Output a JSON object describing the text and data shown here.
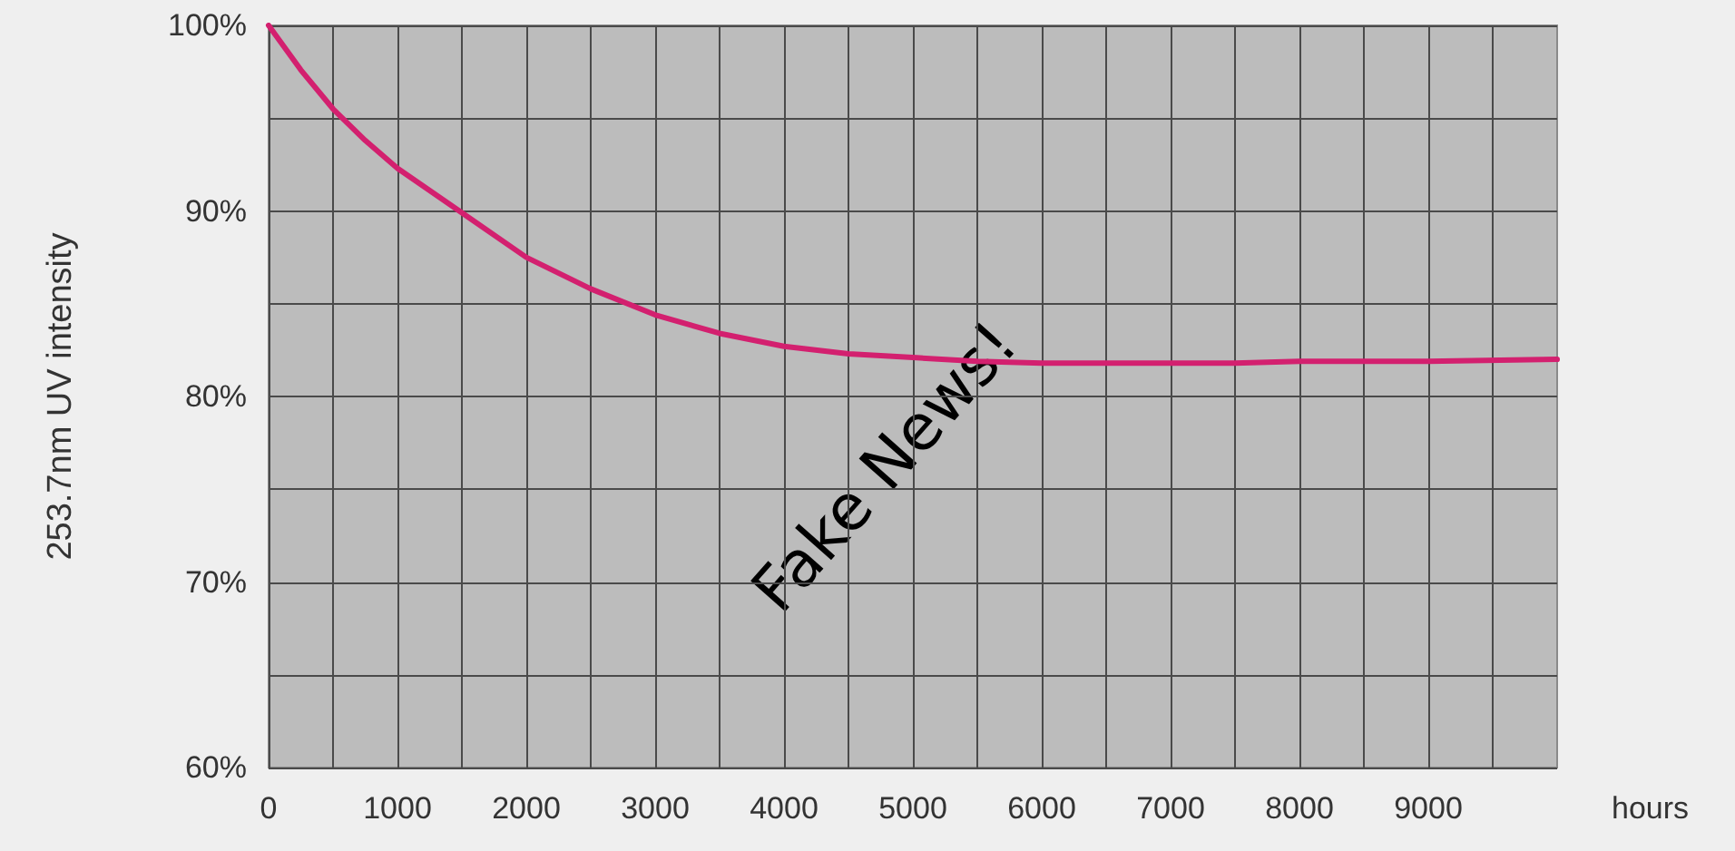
{
  "chart_data": {
    "type": "line",
    "xlabel": "hours",
    "ylabel": "253.7nm UV intensity",
    "x": [
      0,
      250,
      500,
      750,
      1000,
      1500,
      2000,
      2500,
      3000,
      3500,
      4000,
      4500,
      5000,
      5500,
      6000,
      7000,
      7500,
      8000,
      9000,
      10000
    ],
    "series": [
      {
        "color": "#d3206f",
        "values": [
          100,
          97.6,
          95.5,
          93.8,
          92.3,
          89.9,
          87.5,
          85.8,
          84.4,
          83.4,
          82.7,
          82.3,
          82.1,
          81.9,
          81.8,
          81.8,
          81.8,
          81.9,
          81.9,
          82.0
        ]
      }
    ],
    "xlim": [
      0,
      10000
    ],
    "xticks": [
      0,
      {
        "value": 500,
        "label": null
      },
      1000,
      {
        "value": 1500,
        "label": null
      },
      2000,
      {
        "value": 2500,
        "label": null
      },
      3000,
      {
        "value": 3500,
        "label": null
      },
      4000,
      {
        "value": 4500,
        "label": null
      },
      5000,
      {
        "value": 5500,
        "label": null
      },
      6000,
      {
        "value": 6500,
        "label": null
      },
      7000,
      {
        "value": 7500,
        "label": null
      },
      8000,
      {
        "value": 8500,
        "label": null
      },
      9000,
      {
        "value": 9500,
        "label": null
      }
    ],
    "ylim": [
      60,
      100
    ],
    "yticks": [
      {
        "value": 60,
        "label": "60%"
      },
      {
        "value": 65,
        "label": null
      },
      {
        "value": 70,
        "label": "70%"
      },
      {
        "value": 75,
        "label": null
      },
      {
        "value": 80,
        "label": "80%"
      },
      {
        "value": 85,
        "label": null
      },
      {
        "value": 90,
        "label": "90%"
      },
      {
        "value": 95,
        "label": null
      },
      {
        "value": 100,
        "label": "100%"
      }
    ],
    "grid": true,
    "marker": "none",
    "line_style": "solid",
    "annotations": [
      "Fake News!"
    ]
  }
}
